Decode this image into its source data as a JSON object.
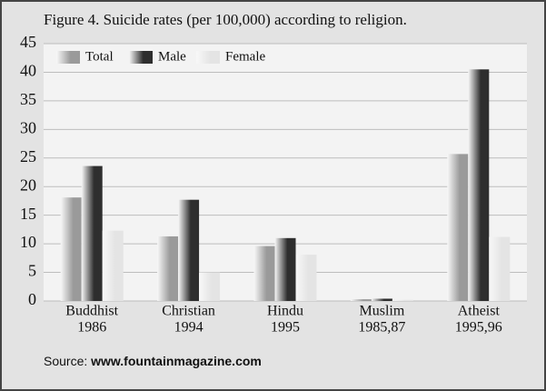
{
  "chart_data": {
    "type": "bar",
    "title": "Figure 4. Suicide rates (per 100,000) according to religion.",
    "categories": [
      [
        "Buddhist",
        "1986"
      ],
      [
        "Christian",
        "1994"
      ],
      [
        "Hindu",
        "1995"
      ],
      [
        "Muslim",
        "1985,87"
      ],
      [
        "Atheist",
        "1995,96"
      ]
    ],
    "series": [
      {
        "name": "Total",
        "color": "#9a9a9a",
        "values": [
          18.1,
          11.3,
          9.6,
          0.3,
          25.7
        ]
      },
      {
        "name": "Male",
        "color": "#2e2e2e",
        "values": [
          23.6,
          17.7,
          11.0,
          0.4,
          40.5
        ]
      },
      {
        "name": "Female",
        "color": "#e4e4e4",
        "values": [
          12.3,
          5.0,
          8.1,
          0.2,
          11.2
        ]
      }
    ],
    "ylim": [
      0,
      45
    ],
    "yticks": [
      0,
      5,
      10,
      15,
      20,
      25,
      30,
      35,
      40,
      45
    ],
    "grid": true,
    "legend": "top-left",
    "source_label": "Source:",
    "source": "www.fountainmagazine.com"
  }
}
